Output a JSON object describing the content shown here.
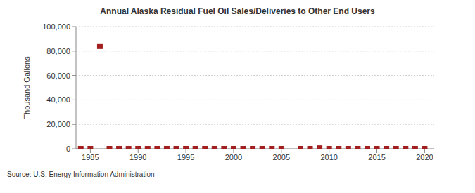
{
  "chart_data": {
    "type": "scatter",
    "title": "Annual Alaska Residual Fuel Oil Sales/Deliveries to Other End Users",
    "y_label": "Thousand Gallons",
    "source": "Source: U.S. Energy Information Administration",
    "x": [
      1984,
      1985,
      1986,
      1987,
      1988,
      1989,
      1990,
      1991,
      1992,
      1993,
      1994,
      1995,
      1996,
      1997,
      1998,
      1999,
      2000,
      2001,
      2002,
      2003,
      2004,
      2005,
      2007,
      2008,
      2009,
      2010,
      2011,
      2012,
      2013,
      2014,
      2015,
      2016,
      2017,
      2018,
      2019,
      2020
    ],
    "values": [
      0,
      0,
      84000,
      0,
      0,
      0,
      0,
      0,
      0,
      0,
      0,
      0,
      0,
      0,
      0,
      0,
      0,
      0,
      0,
      0,
      0,
      0,
      0,
      0,
      500,
      0,
      0,
      0,
      0,
      0,
      0,
      0,
      0,
      0,
      0,
      0
    ],
    "color": "#a31f1f",
    "marker": "square",
    "xlim": [
      1983.5,
      2021
    ],
    "xticks": [
      1985,
      1990,
      1995,
      2000,
      2005,
      2010,
      2015,
      2020
    ],
    "ylim": [
      0,
      100000
    ],
    "yticks": [
      0,
      {
        "value": 20000,
        "label": "20,000"
      },
      {
        "value": 40000,
        "label": "40,000"
      },
      {
        "value": 60000,
        "label": "60,000"
      },
      {
        "value": 80000,
        "label": "80,000"
      },
      {
        "value": 100000,
        "label": "100,000"
      }
    ],
    "grid": true
  }
}
